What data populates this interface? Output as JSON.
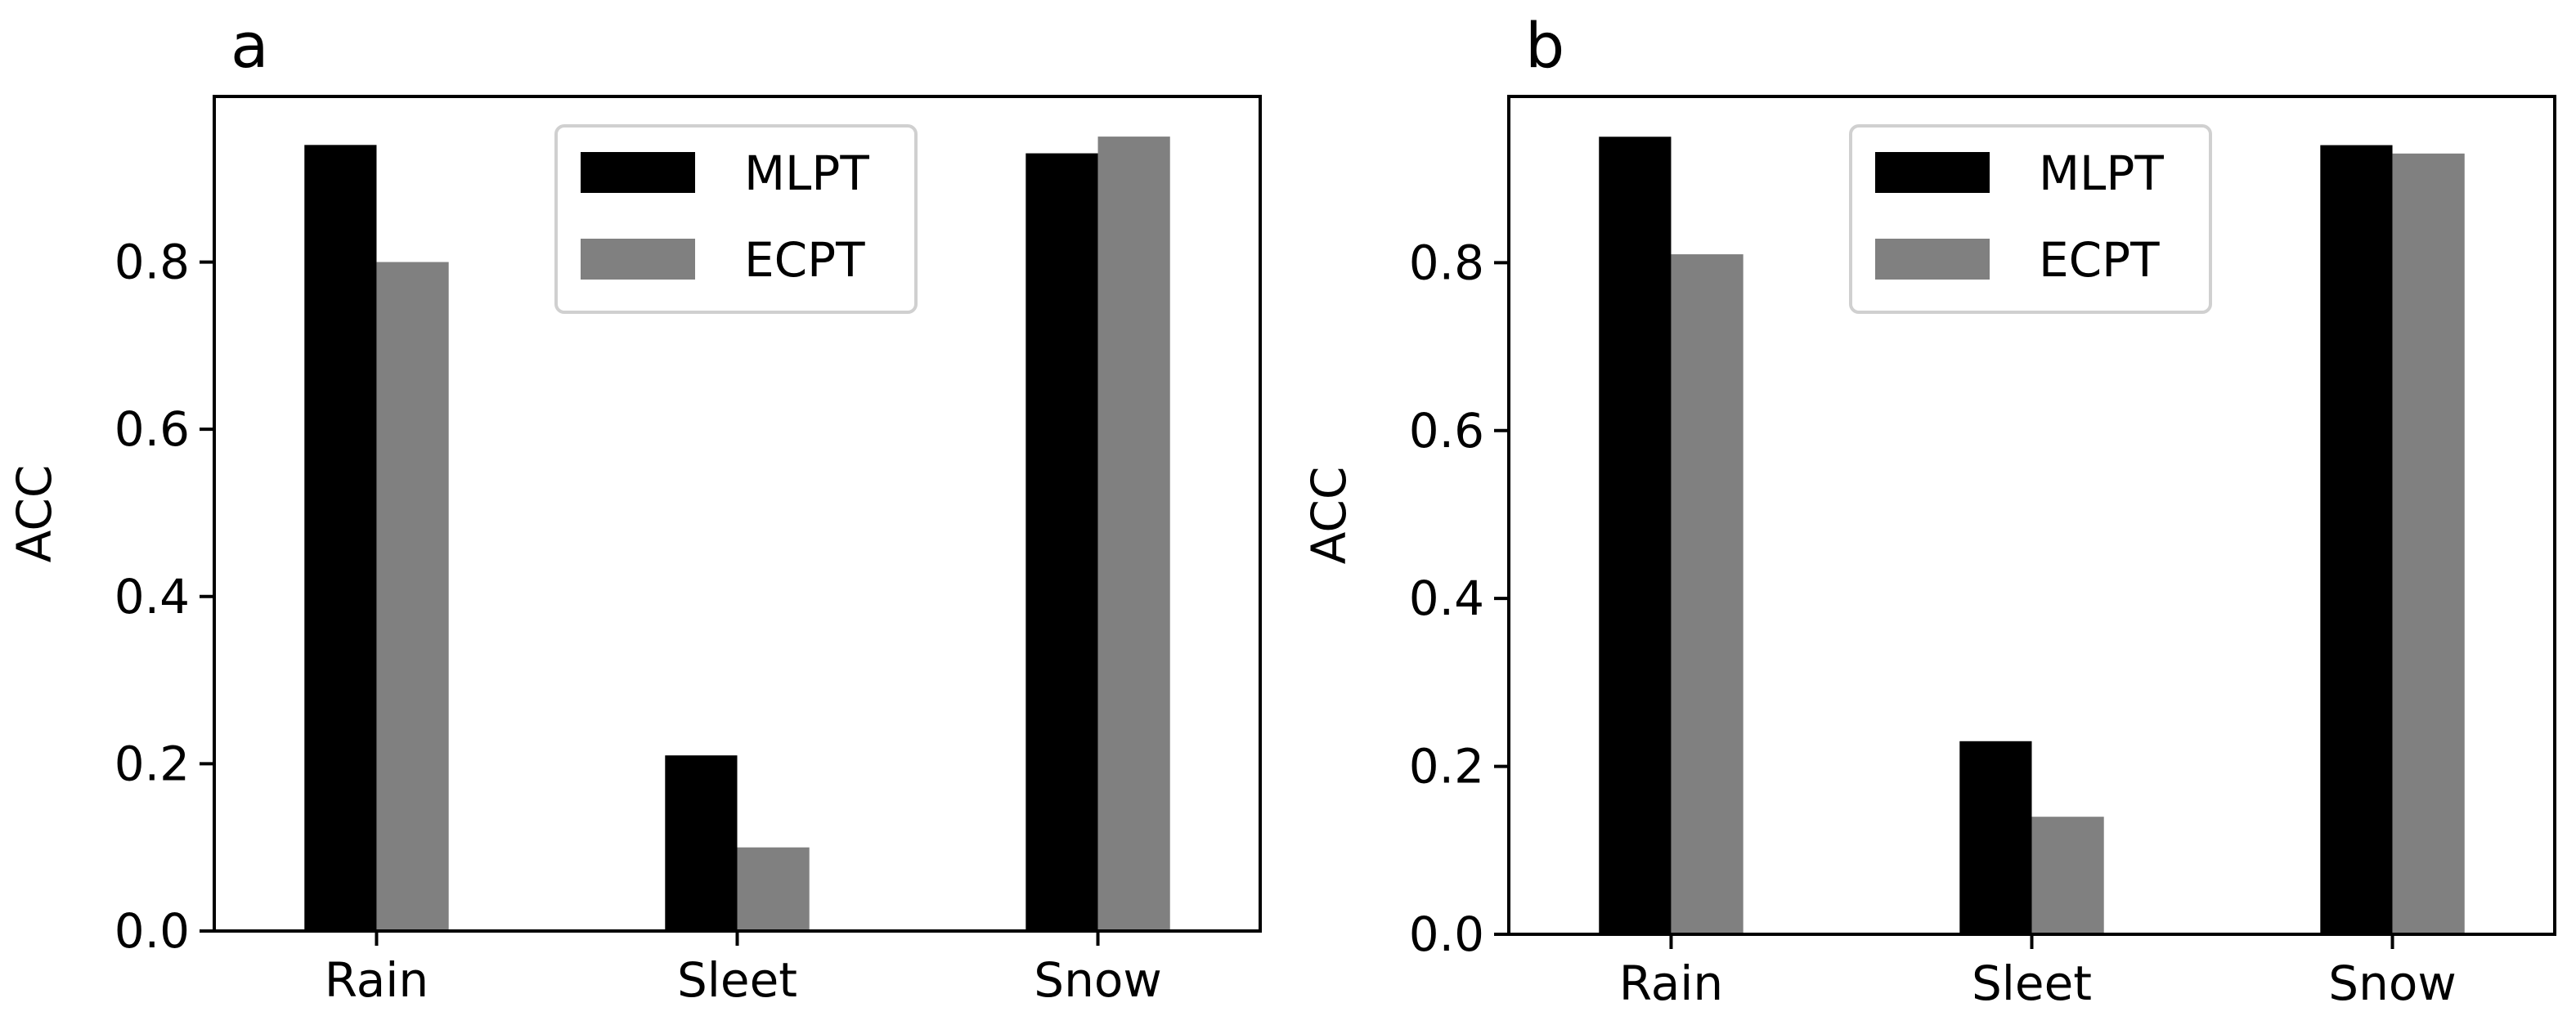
{
  "chart_data": [
    {
      "type": "bar",
      "panel_label": "a",
      "categories": [
        "Rain",
        "Sleet",
        "Snow"
      ],
      "series": [
        {
          "name": "MLPT",
          "color": "#000000",
          "values": [
            0.94,
            0.21,
            0.93
          ]
        },
        {
          "name": "ECPT",
          "color": "#808080",
          "values": [
            0.8,
            0.1,
            0.95
          ]
        }
      ],
      "xlabel": "",
      "ylabel": "ACC",
      "ylim": [
        0,
        0.998
      ],
      "yticks": [
        "0.0",
        "0.2",
        "0.4",
        "0.6",
        "0.8"
      ],
      "grid": false,
      "legend_position": "upper-center"
    },
    {
      "type": "bar",
      "panel_label": "b",
      "categories": [
        "Rain",
        "Sleet",
        "Snow"
      ],
      "series": [
        {
          "name": "MLPT",
          "color": "#000000",
          "values": [
            0.95,
            0.23,
            0.94
          ]
        },
        {
          "name": "ECPT",
          "color": "#808080",
          "values": [
            0.81,
            0.14,
            0.93
          ]
        }
      ],
      "xlabel": "",
      "ylabel": "ACC",
      "ylim": [
        0,
        0.998
      ],
      "yticks": [
        "0.0",
        "0.2",
        "0.4",
        "0.6",
        "0.8"
      ],
      "grid": false,
      "legend_position": "upper-center"
    }
  ]
}
